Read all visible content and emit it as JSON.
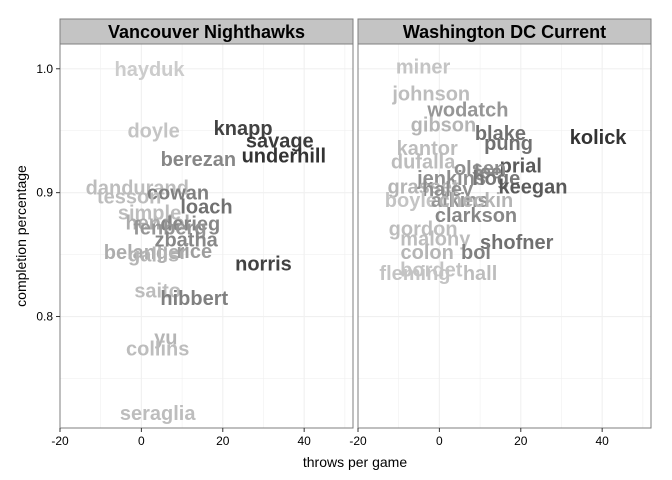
{
  "chart_data": {
    "type": "scatter",
    "xlabel": "throws per game",
    "ylabel": "completion percentage",
    "xlim": [
      -20,
      52
    ],
    "ylim": [
      0.71,
      1.02
    ],
    "xticks": [
      -20,
      0,
      20,
      40
    ],
    "yticks": [
      0.8,
      0.9,
      1.0
    ],
    "ytick_labels": [
      "0.8",
      "0.9",
      "1.0"
    ],
    "grid": true,
    "colors": {
      "panel_border": "#7f7f7f",
      "strip_fill": "#c4c4c4",
      "grid": "#f0f0f0",
      "label_scale_low": "#cccccc",
      "label_scale_high": "#333333"
    },
    "panels": [
      {
        "title": "Vancouver Nighthawks",
        "points": [
          {
            "label": "hayduk",
            "x": 2,
            "y": 1.0,
            "shade": 0.0
          },
          {
            "label": "doyle",
            "x": 3,
            "y": 0.95,
            "shade": 0.05
          },
          {
            "label": "knapp",
            "x": 25,
            "y": 0.952,
            "shade": 0.9
          },
          {
            "label": "savage",
            "x": 34,
            "y": 0.942,
            "shade": 0.95
          },
          {
            "label": "underhill",
            "x": 35,
            "y": 0.93,
            "shade": 1.0
          },
          {
            "label": "berezan",
            "x": 14,
            "y": 0.927,
            "shade": 0.45
          },
          {
            "label": "dandurand",
            "x": -1,
            "y": 0.904,
            "shade": 0.1
          },
          {
            "label": "cowan",
            "x": 9,
            "y": 0.9,
            "shade": 0.5
          },
          {
            "label": "tesson",
            "x": -3,
            "y": 0.897,
            "shade": 0.1
          },
          {
            "label": "loach",
            "x": 16,
            "y": 0.889,
            "shade": 0.6
          },
          {
            "label": "simple",
            "x": 2,
            "y": 0.884,
            "shade": 0.1
          },
          {
            "label": "hendel",
            "x": 4,
            "y": 0.876,
            "shade": 0.2
          },
          {
            "label": "derieg",
            "x": 12,
            "y": 0.875,
            "shade": 0.45
          },
          {
            "label": "fenberg",
            "x": 7,
            "y": 0.872,
            "shade": 0.35
          },
          {
            "label": "zbatha",
            "x": 11,
            "y": 0.862,
            "shade": 0.45
          },
          {
            "label": "belanger",
            "x": 1,
            "y": 0.852,
            "shade": 0.2
          },
          {
            "label": "gallis",
            "x": 3,
            "y": 0.85,
            "shade": 0.15
          },
          {
            "label": "rice",
            "x": 13,
            "y": 0.853,
            "shade": 0.3
          },
          {
            "label": "norris",
            "x": 30,
            "y": 0.843,
            "shade": 0.9
          },
          {
            "label": "saito",
            "x": 4,
            "y": 0.821,
            "shade": 0.1
          },
          {
            "label": "hibbert",
            "x": 13,
            "y": 0.815,
            "shade": 0.5
          },
          {
            "label": "yu",
            "x": 6,
            "y": 0.783,
            "shade": 0.15
          },
          {
            "label": "collins",
            "x": 4,
            "y": 0.774,
            "shade": 0.1
          },
          {
            "label": "seraglia",
            "x": 4,
            "y": 0.722,
            "shade": 0.1
          }
        ]
      },
      {
        "title": "Washington DC Current",
        "points": [
          {
            "label": "miner",
            "x": -4,
            "y": 1.002,
            "shade": 0.05
          },
          {
            "label": "johnson",
            "x": -2,
            "y": 0.98,
            "shade": 0.1
          },
          {
            "label": "wodatch",
            "x": 7,
            "y": 0.967,
            "shade": 0.35
          },
          {
            "label": "gibson",
            "x": 1,
            "y": 0.955,
            "shade": 0.15
          },
          {
            "label": "blake",
            "x": 15,
            "y": 0.948,
            "shade": 0.6
          },
          {
            "label": "kolick",
            "x": 39,
            "y": 0.945,
            "shade": 1.0
          },
          {
            "label": "pung",
            "x": 17,
            "y": 0.94,
            "shade": 0.6
          },
          {
            "label": "kantor",
            "x": -3,
            "y": 0.936,
            "shade": 0.1
          },
          {
            "label": "dufalla",
            "x": -4,
            "y": 0.925,
            "shade": 0.1
          },
          {
            "label": "prial",
            "x": 20,
            "y": 0.922,
            "shade": 0.75
          },
          {
            "label": "olsen",
            "x": 10,
            "y": 0.92,
            "shade": 0.4
          },
          {
            "label": "lee",
            "x": 12,
            "y": 0.917,
            "shade": 0.45
          },
          {
            "label": "jenkins",
            "x": 3,
            "y": 0.912,
            "shade": 0.4
          },
          {
            "label": "hoge",
            "x": 14,
            "y": 0.912,
            "shade": 0.55
          },
          {
            "label": "keegan",
            "x": 23,
            "y": 0.905,
            "shade": 0.75
          },
          {
            "label": "grasset",
            "x": -4,
            "y": 0.905,
            "shade": 0.15
          },
          {
            "label": "haley",
            "x": 2,
            "y": 0.903,
            "shade": 0.4
          },
          {
            "label": "boyle",
            "x": -7,
            "y": 0.894,
            "shade": 0.05
          },
          {
            "label": "atkins",
            "x": 5,
            "y": 0.894,
            "shade": 0.35
          },
          {
            "label": "checkin",
            "x": 9,
            "y": 0.894,
            "shade": 0.15
          },
          {
            "label": "clarkson",
            "x": 9,
            "y": 0.882,
            "shade": 0.45
          },
          {
            "label": "gordon",
            "x": -4,
            "y": 0.871,
            "shade": 0.1
          },
          {
            "label": "malony",
            "x": -1,
            "y": 0.863,
            "shade": 0.1
          },
          {
            "label": "shofner",
            "x": 19,
            "y": 0.86,
            "shade": 0.6
          },
          {
            "label": "colon",
            "x": -3,
            "y": 0.852,
            "shade": 0.15
          },
          {
            "label": "bol",
            "x": 9,
            "y": 0.852,
            "shade": 0.5
          },
          {
            "label": "bordet",
            "x": -2,
            "y": 0.838,
            "shade": 0.05
          },
          {
            "label": "fleming",
            "x": -6,
            "y": 0.835,
            "shade": 0.05
          },
          {
            "label": "hall",
            "x": 10,
            "y": 0.835,
            "shade": 0.1
          }
        ]
      }
    ]
  }
}
